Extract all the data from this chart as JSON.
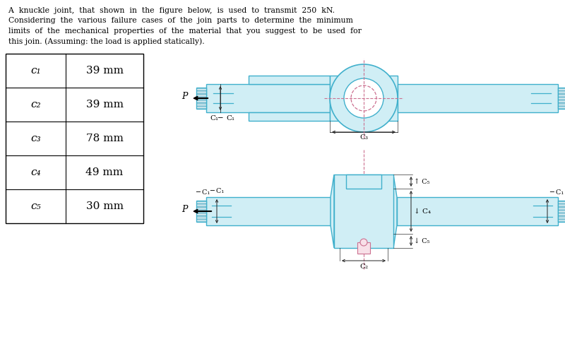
{
  "title_lines": [
    "  A  knuckle  joint,  that  shown  in  the  figure  below,  is  used  to  transmit  250  kN.",
    "  Considering  the  various  failure  cases  of  the  join  parts  to  determine  the  minimum",
    "  limits  of  the  mechanical  properties  of  the  material  that  you  suggest  to  be  used  for",
    "  this join. (Assuming: the load is applied statically)."
  ],
  "table_labels": [
    "c1",
    "c2",
    "c3",
    "c4",
    "c5"
  ],
  "table_values": [
    "39 mm",
    "39 mm",
    "78 mm",
    "49 mm",
    "30 mm"
  ],
  "bg_color": "#ffffff",
  "line_color": "#000000",
  "cyan_fill": "#d0eef5",
  "cyan_edge": "#40b0cc",
  "pink_dash": "#cc7090",
  "hatch_fill": "#90c8d8",
  "dim_color": "#222222"
}
